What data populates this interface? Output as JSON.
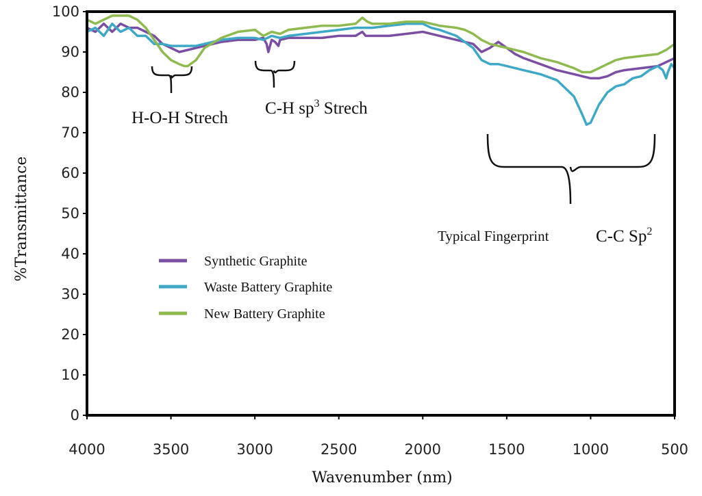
{
  "chart_data": {
    "type": "line",
    "title": "",
    "xlabel": "Wavenumber (nm)",
    "ylabel": "%Transmittance",
    "xlim": [
      4000,
      500
    ],
    "ylim": [
      0,
      100
    ],
    "x_reversed": true,
    "xticks": [
      4000,
      3500,
      3000,
      2500,
      2000,
      1500,
      1000,
      500
    ],
    "yticks": [
      0,
      10,
      20,
      30,
      40,
      50,
      60,
      70,
      80,
      90,
      100
    ],
    "grid": false,
    "legend_position": "center-left",
    "series": [
      {
        "name": "Synthetic Graphite",
        "color": "#7a4fa3",
        "x": [
          4000,
          3950,
          3900,
          3850,
          3800,
          3750,
          3700,
          3650,
          3600,
          3550,
          3500,
          3450,
          3400,
          3350,
          3300,
          3200,
          3100,
          3000,
          2950,
          2930,
          2920,
          2900,
          2880,
          2860,
          2850,
          2800,
          2700,
          2600,
          2500,
          2400,
          2360,
          2340,
          2300,
          2200,
          2100,
          2000,
          1900,
          1800,
          1700,
          1650,
          1600,
          1550,
          1500,
          1450,
          1400,
          1300,
          1200,
          1100,
          1050,
          1000,
          950,
          900,
          850,
          800,
          700,
          600,
          550,
          500
        ],
        "values": [
          96,
          95,
          97,
          95,
          97,
          96,
          96,
          95,
          94,
          92,
          91,
          90,
          90.5,
          91,
          91.5,
          92.5,
          93,
          93,
          93.5,
          92,
          90,
          93,
          92.5,
          91.5,
          93,
          93.5,
          93.5,
          93.5,
          94,
          94,
          95,
          94,
          94,
          94,
          94.5,
          95,
          94,
          93,
          92,
          90,
          91,
          92.5,
          91,
          89.5,
          88.5,
          87,
          85.5,
          84.5,
          84,
          83.5,
          83.5,
          84,
          85,
          85.5,
          86,
          86.5,
          87.5,
          88.5
        ]
      },
      {
        "name": "Waste Battery Graphite",
        "color": "#3ea8c7",
        "x": [
          4000,
          3950,
          3900,
          3850,
          3800,
          3750,
          3700,
          3650,
          3600,
          3550,
          3500,
          3450,
          3400,
          3350,
          3300,
          3200,
          3100,
          3000,
          2950,
          2900,
          2850,
          2800,
          2700,
          2600,
          2500,
          2400,
          2350,
          2300,
          2200,
          2100,
          2000,
          1950,
          1900,
          1800,
          1700,
          1650,
          1600,
          1550,
          1500,
          1450,
          1400,
          1300,
          1200,
          1100,
          1050,
          1025,
          1000,
          950,
          900,
          850,
          800,
          750,
          700,
          650,
          600,
          570,
          550,
          540,
          520,
          500
        ],
        "values": [
          95,
          96,
          94,
          97,
          95,
          96,
          94,
          94,
          92,
          92,
          91.5,
          91.5,
          91.5,
          91.5,
          92,
          93,
          93.5,
          93.5,
          93,
          94,
          93.5,
          94,
          94.5,
          95,
          95.5,
          96,
          96,
          96,
          96.5,
          97,
          97,
          96,
          95.5,
          94,
          91,
          88,
          87,
          87,
          86.5,
          86,
          85.5,
          84.5,
          83,
          79,
          74.5,
          72,
          72.5,
          77,
          80,
          81.5,
          82,
          83.5,
          84,
          85.5,
          86.5,
          85.5,
          83.5,
          85,
          87,
          86
        ]
      },
      {
        "name": "New Battery Graphite",
        "color": "#8fba4f",
        "x": [
          4000,
          3950,
          3900,
          3850,
          3800,
          3750,
          3700,
          3650,
          3600,
          3550,
          3500,
          3450,
          3420,
          3400,
          3350,
          3300,
          3200,
          3100,
          3000,
          2950,
          2900,
          2850,
          2800,
          2700,
          2600,
          2500,
          2400,
          2360,
          2330,
          2300,
          2200,
          2100,
          2000,
          1900,
          1800,
          1750,
          1700,
          1650,
          1600,
          1500,
          1400,
          1300,
          1200,
          1100,
          1050,
          1000,
          950,
          900,
          850,
          800,
          700,
          600,
          550,
          500
        ],
        "values": [
          98,
          97,
          98,
          99,
          99,
          99,
          98,
          96,
          93,
          90,
          88,
          87,
          86.5,
          86.5,
          88,
          91,
          93.5,
          95,
          95.5,
          94,
          95,
          94.5,
          95.5,
          96,
          96.5,
          96.5,
          97,
          98.5,
          97.5,
          97,
          97,
          97.5,
          97.5,
          96.5,
          96,
          95.5,
          94.5,
          93,
          92,
          91,
          90,
          88.5,
          87.5,
          86,
          85,
          85,
          86,
          87,
          88,
          88.5,
          89,
          89.5,
          90.5,
          92
        ]
      }
    ],
    "annotations": [
      {
        "text": "H-O-H Strech",
        "x": 3300,
        "y": 74
      },
      {
        "text": "C-H sp",
        "sup": "3",
        "text_after": " Strech",
        "x": 2750,
        "y": 76
      },
      {
        "text": "Typical Fingerprint",
        "x": 1120,
        "y": 45
      },
      {
        "text": "C-C Sp",
        "sup": "2",
        "x": 780,
        "y": 45
      }
    ]
  }
}
